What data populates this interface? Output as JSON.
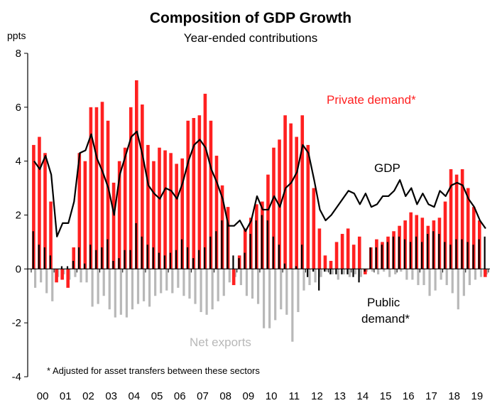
{
  "chart_data": {
    "type": "bar",
    "title": "Composition of GDP Growth",
    "subtitle": "Year-ended contributions",
    "ylabel": "ppts",
    "ylim": [
      -4,
      8
    ],
    "yticks": [
      -4,
      -2,
      0,
      2,
      4,
      6,
      8
    ],
    "x_tick_labels": [
      "00",
      "01",
      "02",
      "03",
      "04",
      "05",
      "06",
      "07",
      "08",
      "09",
      "10",
      "11",
      "12",
      "13",
      "14",
      "15",
      "16",
      "17",
      "18",
      "19"
    ],
    "footnote": "* Adjusted for asset transfers between these sectors",
    "colors": {
      "private": "#ff2020",
      "public": "#000000",
      "net_exports": "#b8b8b8",
      "gdp": "#000000"
    },
    "series_labels": {
      "private": "Private demand*",
      "gdp": "GDP",
      "public_line1": "Public",
      "public_line2": "demand*",
      "net_exports": "Net exports"
    },
    "series": [
      {
        "name": "Private demand*",
        "values": [
          4.6,
          4.9,
          4.3,
          2.5,
          -0.5,
          -0.4,
          -0.7,
          0.8,
          4.3,
          4.0,
          6.0,
          6.0,
          6.2,
          5.5,
          3.2,
          4.0,
          4.5,
          6.0,
          7.0,
          6.1,
          4.6,
          4.0,
          4.5,
          4.4,
          4.3,
          3.9,
          4.1,
          5.5,
          5.6,
          5.7,
          6.5,
          5.5,
          4.2,
          3.1,
          2.3,
          -0.6,
          0.5,
          1.5,
          1.9,
          2.4,
          2.5,
          3.5,
          4.5,
          4.8,
          5.7,
          5.4,
          4.9,
          5.7,
          4.6,
          3.0,
          1.5,
          0.5,
          0.3,
          1.0,
          1.3,
          1.5,
          0.9,
          1.2,
          -0.2,
          0.8,
          1.1,
          1.0,
          1.2,
          1.4,
          1.6,
          1.8,
          2.1,
          2.0,
          1.9,
          1.6,
          1.8,
          1.9,
          2.5,
          3.7,
          3.5,
          3.7,
          3.0,
          2.3,
          1.8,
          -0.3
        ]
      },
      {
        "name": "Public demand*",
        "values": [
          1.4,
          0.9,
          0.8,
          0.5,
          0.0,
          0.1,
          0.1,
          0.3,
          0.8,
          0.2,
          0.9,
          0.7,
          0.8,
          1.1,
          0.3,
          0.4,
          0.7,
          0.7,
          1.7,
          1.2,
          0.9,
          0.8,
          0.6,
          0.5,
          0.6,
          0.7,
          1.1,
          0.8,
          0.4,
          0.7,
          0.8,
          1.2,
          1.4,
          1.8,
          1.8,
          0.5,
          0.4,
          0.6,
          1.3,
          1.8,
          2.0,
          1.8,
          1.2,
          0.9,
          0.2,
          0.0,
          0.1,
          0.9,
          -0.3,
          -0.1,
          -0.8,
          -0.1,
          -0.2,
          -0.2,
          -0.2,
          -0.2,
          -0.3,
          -0.5,
          -0.1,
          0.8,
          0.8,
          0.9,
          1.0,
          1.2,
          1.2,
          1.1,
          1.0,
          1.2,
          1.0,
          1.3,
          1.4,
          1.3,
          1.0,
          0.9,
          1.1,
          1.1,
          1.0,
          0.9,
          1.1,
          1.2
        ]
      },
      {
        "name": "Net exports",
        "values": [
          -0.7,
          -0.5,
          -0.9,
          -1.2,
          -0.3,
          -0.2,
          -0.4,
          -0.3,
          -0.5,
          -0.5,
          -1.4,
          -1.3,
          -1.0,
          -1.5,
          -1.8,
          -1.7,
          -1.8,
          -1.5,
          -1.3,
          -1.2,
          -1.4,
          -1.0,
          -0.9,
          -0.8,
          -0.9,
          -0.7,
          -1.0,
          -1.1,
          -1.3,
          -1.6,
          -1.7,
          -1.5,
          -1.2,
          -1.0,
          -0.5,
          -0.3,
          -0.6,
          -1.0,
          -1.1,
          -1.3,
          -2.2,
          -2.2,
          -1.9,
          -1.5,
          -1.7,
          -2.7,
          -1.6,
          -0.8,
          -0.6,
          -0.5,
          -0.3,
          -0.1,
          -0.2,
          -0.4,
          -0.2,
          -0.3,
          -0.2,
          -0.3,
          -0.1,
          -0.1,
          -0.2,
          -0.1,
          -0.3,
          -0.2,
          -0.1,
          -0.4,
          -0.4,
          -0.6,
          -0.6,
          -1.0,
          -0.8,
          -0.4,
          -0.6,
          -0.9,
          -1.5,
          -1.0,
          -0.6,
          -0.4,
          -0.3,
          -0.2
        ]
      },
      {
        "name": "GDP",
        "values": [
          4.0,
          3.7,
          4.2,
          3.5,
          1.2,
          1.7,
          1.7,
          2.5,
          4.3,
          4.4,
          5.0,
          4.1,
          3.6,
          3.0,
          2.0,
          3.5,
          4.2,
          4.9,
          5.1,
          4.2,
          3.1,
          2.8,
          2.6,
          3.0,
          2.9,
          2.6,
          3.2,
          4.0,
          4.6,
          4.8,
          4.5,
          3.7,
          3.2,
          2.6,
          1.6,
          1.6,
          1.8,
          1.4,
          1.8,
          2.7,
          2.2,
          2.2,
          2.7,
          2.3,
          3.0,
          3.2,
          3.6,
          4.6,
          4.3,
          3.3,
          2.2,
          1.8,
          2.0,
          2.3,
          2.6,
          2.9,
          2.8,
          2.4,
          2.8,
          2.3,
          2.4,
          2.7,
          2.7,
          2.9,
          3.3,
          2.7,
          3.0,
          2.4,
          2.8,
          2.4,
          2.3,
          2.9,
          2.7,
          3.1,
          3.2,
          3.1,
          2.6,
          2.3,
          1.8,
          1.5
        ]
      }
    ]
  }
}
